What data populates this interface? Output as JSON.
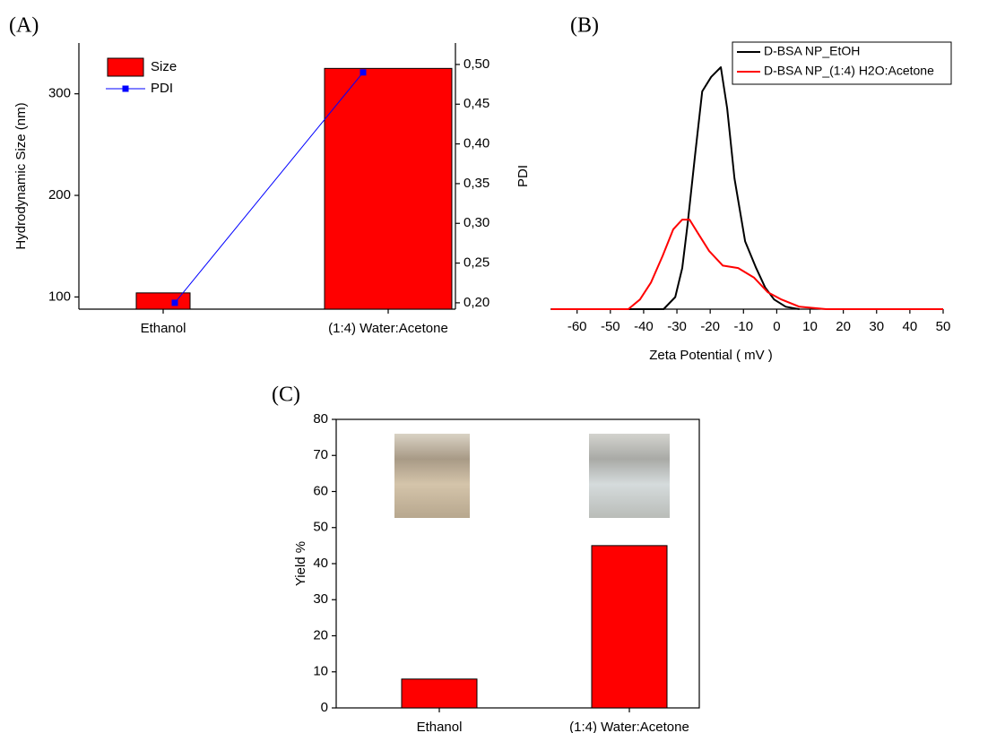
{
  "chart_data": [
    {
      "type": "bar",
      "panel_label": "(A)",
      "categories": [
        "Ethanol",
        "(1:4) Water:Acetone"
      ],
      "y_label": "Hydrodynamic Size (nm)",
      "y2_label": "PDI",
      "series": [
        {
          "name": "Size",
          "color": "#ff0000",
          "values": [
            104,
            325
          ]
        },
        {
          "name": "PDI",
          "color": "#0000ff",
          "values": [
            0.2,
            0.49
          ],
          "axis": "y2"
        }
      ],
      "ylim": [
        88,
        350
      ],
      "yticks": [
        100,
        200,
        300
      ],
      "y2lim": [
        0.192,
        0.527
      ],
      "y2ticks": [
        {
          "value": 0.2,
          "label": "0,20"
        },
        {
          "value": 0.25,
          "label": "0,25"
        },
        {
          "value": 0.3,
          "label": "0,30"
        },
        {
          "value": 0.35,
          "label": "0,35"
        },
        {
          "value": 0.4,
          "label": "0,40"
        },
        {
          "value": 0.45,
          "label": "0,45"
        },
        {
          "value": 0.5,
          "label": "0,50"
        }
      ],
      "legend": "upper left"
    },
    {
      "type": "line",
      "panel_label": "(B)",
      "x_label": "Zeta Potential ( mV )",
      "xlim": [
        -68,
        50
      ],
      "xticks": [
        -60,
        -50,
        -40,
        -30,
        -20,
        -10,
        0,
        10,
        20,
        30,
        40,
        50
      ],
      "ylim": [
        0,
        1.1
      ],
      "series": [
        {
          "name": "D-BSA NP_EtOH",
          "color": "#000000",
          "x": [
            -64,
            -34,
            -30.5,
            -28.4,
            -26.8,
            -24.6,
            -22.4,
            -19.7,
            -16.8,
            -14.9,
            -12.7,
            -9.5,
            -6.2,
            -3.5,
            -0.8,
            2.7,
            6.8
          ],
          "values": [
            0,
            0,
            0.05,
            0.17,
            0.35,
            0.63,
            0.9,
            0.96,
            1,
            0.83,
            0.54,
            0.28,
            0.17,
            0.09,
            0.04,
            0.01,
            0
          ]
        },
        {
          "name": "D-BSA NP_(1:4) H2O:Acetone",
          "color": "#ff0000",
          "x": [
            -67.8,
            -44.6,
            -41.1,
            -37.8,
            -34.3,
            -31.1,
            -28.4,
            -26.2,
            -23.5,
            -20.3,
            -16.2,
            -11.6,
            -6.8,
            -2.7,
            1.4,
            6.8,
            14.9,
            50
          ],
          "values": [
            0,
            0,
            0.04,
            0.11,
            0.22,
            0.33,
            0.37,
            0.37,
            0.31,
            0.24,
            0.18,
            0.17,
            0.13,
            0.07,
            0.04,
            0.01,
            0,
            0
          ]
        }
      ],
      "legend": "upper right"
    },
    {
      "type": "bar",
      "panel_label": "(C)",
      "y_label": "Yield %",
      "categories": [
        "Ethanol",
        "(1:4) Water:Acetone"
      ],
      "series": [
        {
          "name": "Yield %",
          "color": "#ff0000",
          "values": [
            8,
            45
          ]
        }
      ],
      "ylim": [
        0,
        80
      ],
      "yticks": [
        0,
        10,
        20,
        30,
        40,
        50,
        60,
        70,
        80
      ]
    }
  ]
}
